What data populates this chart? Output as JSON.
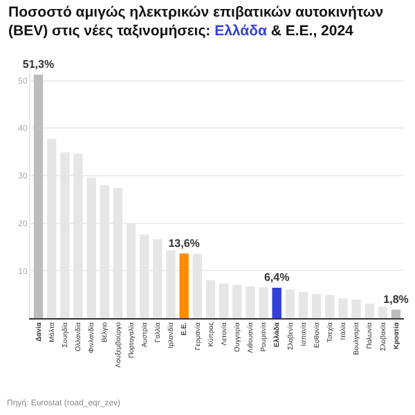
{
  "chart_data": {
    "type": "bar",
    "title": "Ποσοστό αμιγώς ηλεκτρικών επιβατικών αυτοκινήτων (BEV) στις νέες ταξινομήσεις: Ελλάδα & Ε.Ε., 2024",
    "categories": [
      "Δανία",
      "Μάλτα",
      "Σουηδία",
      "Ολλανδία",
      "Φινλανδία",
      "Βέλγιο",
      "Λουξεμβούργο",
      "Πορτογαλία",
      "Αυστρία",
      "Γαλλία",
      "Ιρλανδία",
      "Ε.Ε.",
      "Γερμανία",
      "Κύπρος",
      "Λετονία",
      "Ουγγαρία",
      "Λιθουανία",
      "Ρουμανία",
      "Ελλάδα",
      "Σλοβενία",
      "Ισπανία",
      "Εσθονία",
      "Τσεχία",
      "Ιταλία",
      "Βουλγαρία",
      "Πολωνία",
      "Σλοβακία",
      "Κροατία"
    ],
    "values": [
      51.3,
      37.7,
      34.9,
      34.6,
      29.6,
      28.0,
      27.4,
      20.0,
      17.6,
      16.6,
      14.3,
      13.6,
      13.5,
      8.0,
      7.3,
      7.0,
      6.7,
      6.5,
      6.4,
      6.0,
      5.5,
      5.1,
      4.9,
      4.2,
      3.9,
      3.0,
      2.4,
      1.8
    ],
    "colors": [
      "#bdbdbd",
      "#e6e6e6",
      "#e6e6e6",
      "#e6e6e6",
      "#e6e6e6",
      "#e6e6e6",
      "#e6e6e6",
      "#e6e6e6",
      "#e6e6e6",
      "#e6e6e6",
      "#e6e6e6",
      "#ff8c00",
      "#e6e6e6",
      "#e6e6e6",
      "#e6e6e6",
      "#e6e6e6",
      "#e6e6e6",
      "#e6e6e6",
      "#3340d8",
      "#e6e6e6",
      "#e6e6e6",
      "#e6e6e6",
      "#e6e6e6",
      "#e6e6e6",
      "#e6e6e6",
      "#e6e6e6",
      "#e6e6e6",
      "#bdbdbd"
    ],
    "value_labels": [
      "51,3%",
      null,
      null,
      null,
      null,
      null,
      null,
      null,
      null,
      null,
      null,
      "13,6%",
      null,
      null,
      null,
      null,
      null,
      null,
      "6,4%",
      null,
      null,
      null,
      null,
      null,
      null,
      null,
      null,
      "1,8%"
    ],
    "ylim": [
      0,
      53
    ],
    "yticks": [
      10,
      20,
      30,
      40,
      50
    ],
    "grid": "y",
    "annotations": [
      "Πηγή: Eurostat (road_eqr_zev)"
    ]
  }
}
